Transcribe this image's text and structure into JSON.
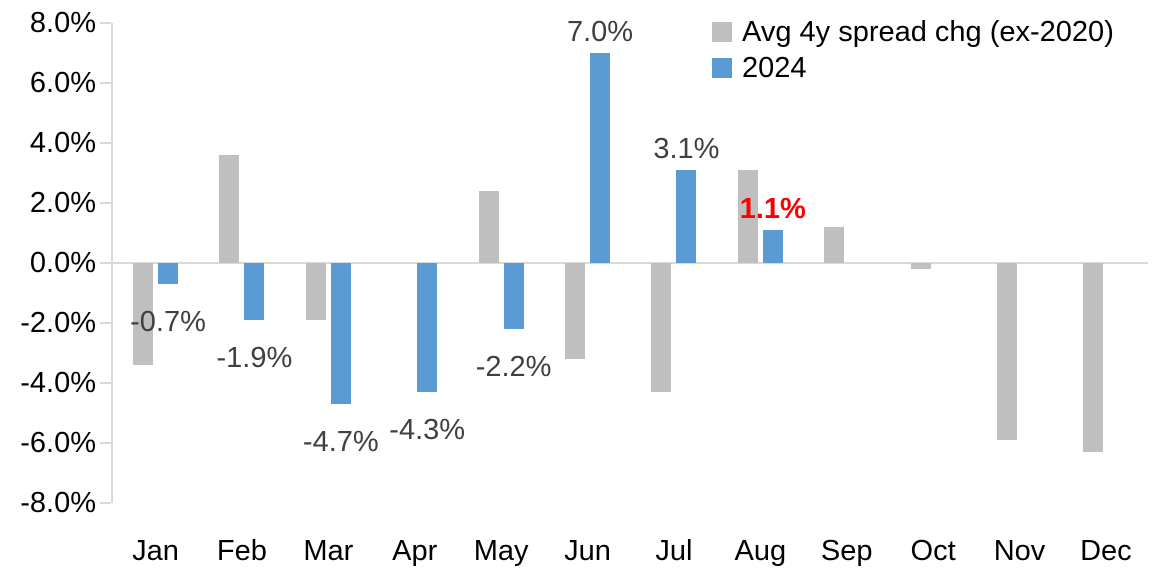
{
  "chart_data": {
    "type": "bar",
    "title": "",
    "categories": [
      "Jan",
      "Feb",
      "Mar",
      "Apr",
      "May",
      "Jun",
      "Jul",
      "Aug",
      "Sep",
      "Oct",
      "Nov",
      "Dec"
    ],
    "series": [
      {
        "name": "Avg 4y spread chg (ex-2020)",
        "color": "#BFBFBF",
        "values": [
          -3.4,
          3.6,
          -1.9,
          0.0,
          2.4,
          -3.2,
          -4.3,
          3.1,
          1.2,
          -0.2,
          -5.9,
          -6.3
        ]
      },
      {
        "name": "2024",
        "color": "#5B9BD5",
        "values": [
          -0.7,
          -1.9,
          -4.7,
          -4.3,
          -2.2,
          7.0,
          3.1,
          1.1,
          null,
          null,
          null,
          null
        ]
      }
    ],
    "data_labels": [
      {
        "category": "Jan",
        "text": "-0.7%",
        "color": "#404040",
        "bold": false
      },
      {
        "category": "Feb",
        "text": "-1.9%",
        "color": "#404040",
        "bold": false
      },
      {
        "category": "Mar",
        "text": "-4.7%",
        "color": "#404040",
        "bold": false
      },
      {
        "category": "Apr",
        "text": "-4.3%",
        "color": "#404040",
        "bold": false
      },
      {
        "category": "May",
        "text": "-2.2%",
        "color": "#404040",
        "bold": false
      },
      {
        "category": "Jun",
        "text": "7.0%",
        "color": "#404040",
        "bold": false
      },
      {
        "category": "Jul",
        "text": "3.1%",
        "color": "#404040",
        "bold": false
      },
      {
        "category": "Aug",
        "text": "1.1%",
        "color": "#FF0000",
        "bold": true
      }
    ],
    "xlabel": "",
    "ylabel": "",
    "ylim": [
      -8,
      8
    ],
    "ytick_step": 2,
    "ytick_labels": [
      "8.0%",
      "6.0%",
      "4.0%",
      "2.0%",
      "0.0%",
      "-2.0%",
      "-4.0%",
      "-6.0%",
      "-8.0%"
    ],
    "legend_position": "top-right",
    "grid": false,
    "axis_color": "#D9D9D9",
    "label_color": "#404040",
    "highlight_label_color": "#FF0000"
  }
}
